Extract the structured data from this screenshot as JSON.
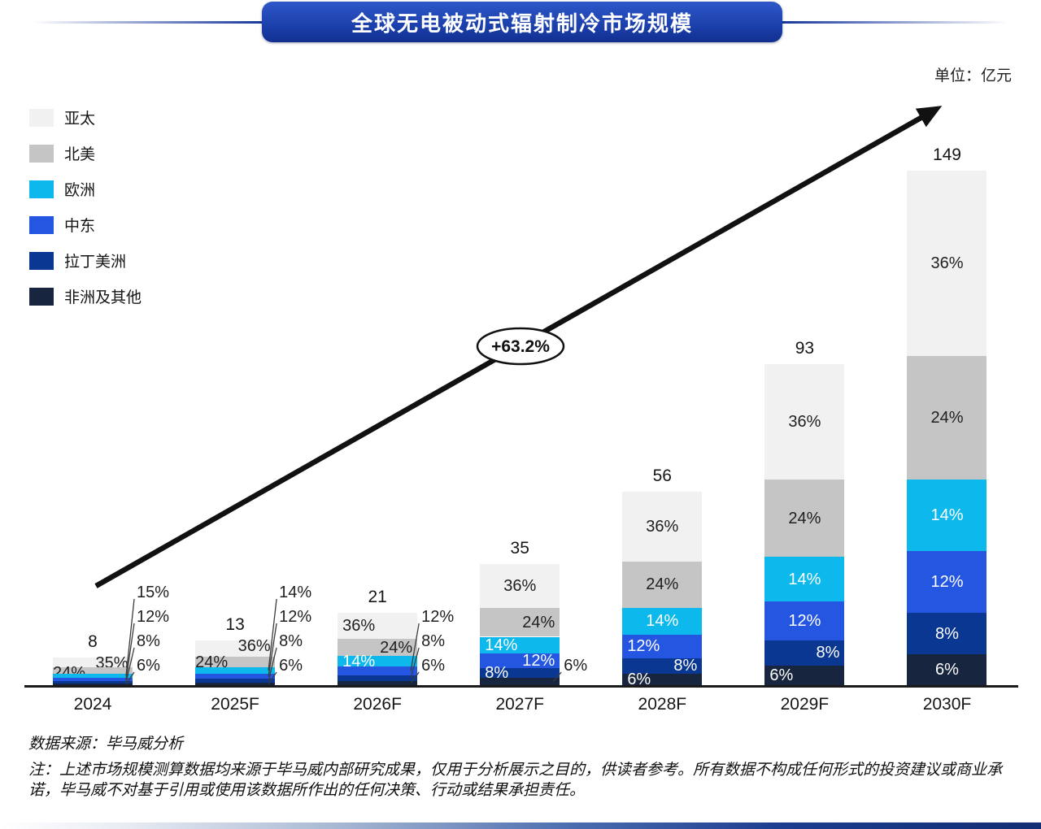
{
  "header": {
    "title": "全球无电被动式辐射制冷市场规模",
    "unit_label": "单位：亿元"
  },
  "legend": {
    "items": [
      {
        "label": "亚太",
        "color": "#f1f1f1"
      },
      {
        "label": "北美",
        "color": "#c5c5c5"
      },
      {
        "label": "欧洲",
        "color": "#0db9ec"
      },
      {
        "label": "中东",
        "color": "#2456e2"
      },
      {
        "label": "拉丁美洲",
        "color": "#0a3791"
      },
      {
        "label": "非洲及其他",
        "color": "#17263e"
      }
    ]
  },
  "chart_data": {
    "type": "bar",
    "stacked": true,
    "title": "全球无电被动式辐射制冷市场规模",
    "unit": "亿元",
    "categories": [
      "2024",
      "2025F",
      "2026F",
      "2027F",
      "2028F",
      "2029F",
      "2030F"
    ],
    "totals": [
      8,
      13,
      21,
      35,
      56,
      93,
      149
    ],
    "series": [
      {
        "name": "亚太",
        "color": "#f1f1f1",
        "percents": [
          35,
          36,
          36,
          36,
          36,
          36,
          36
        ]
      },
      {
        "name": "北美",
        "color": "#c5c5c5",
        "percents": [
          24,
          24,
          24,
          24,
          24,
          24,
          24
        ]
      },
      {
        "name": "欧洲",
        "color": "#0db9ec",
        "percents": [
          15,
          14,
          14,
          14,
          14,
          14,
          14
        ]
      },
      {
        "name": "中东",
        "color": "#2456e2",
        "percents": [
          12,
          12,
          12,
          12,
          12,
          12,
          12
        ]
      },
      {
        "name": "拉丁美洲",
        "color": "#0a3791",
        "percents": [
          8,
          8,
          8,
          8,
          8,
          8,
          8
        ]
      },
      {
        "name": "非洲及其他",
        "color": "#17263e",
        "percents": [
          6,
          6,
          6,
          6,
          6,
          6,
          6
        ]
      }
    ],
    "cagr_label": "+63.2%",
    "ylim": [
      0,
      160
    ],
    "grid": false,
    "legend_position": "left-top"
  },
  "footer": {
    "source": "数据来源：毕马威分析",
    "note": "注：上述市场规模测算数据均来源于毕马威内部研究成果，仅用于分析展示之目的，供读者参考。所有数据不构成任何形式的投资建议或商业承诺，毕马威不对基于引用或使用该数据所作出的任何决策、行动或结果承担责任。"
  }
}
